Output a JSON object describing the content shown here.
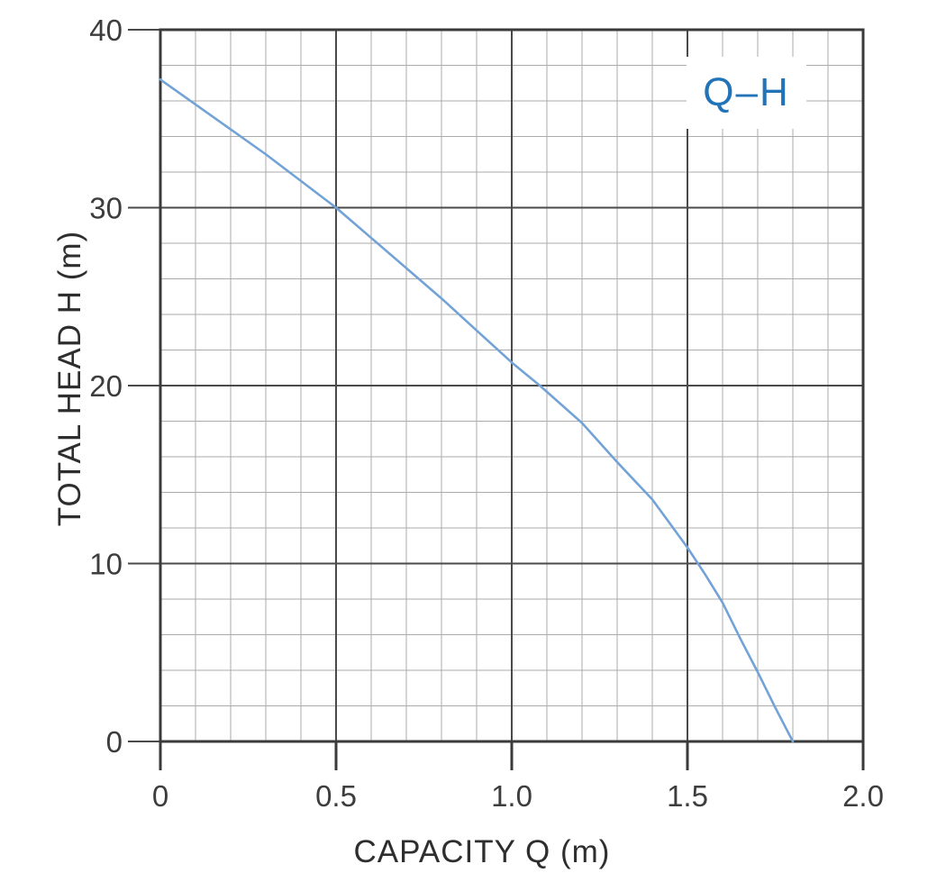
{
  "chart_data": {
    "type": "line",
    "title": "",
    "xlabel": "CAPACITY Q (m)",
    "ylabel": "TOTAL HEAD H (m)",
    "legend_label": "Q–H",
    "legend_position": "top-right",
    "grid": "on",
    "xlim": [
      0,
      2.0
    ],
    "ylim": [
      0,
      40
    ],
    "x_minor_step": 0.1,
    "x_major_step": 0.5,
    "y_minor_step": 2,
    "y_major_step": 10,
    "x_ticks": [
      "0",
      "0.5",
      "1.0",
      "1.5",
      "2.0"
    ],
    "y_ticks": [
      "40",
      "30",
      "20",
      "10",
      "0"
    ],
    "series": [
      {
        "name": "Q-H",
        "x": [
          0,
          0.1,
          0.2,
          0.3,
          0.4,
          0.5,
          0.6,
          0.7,
          0.8,
          0.9,
          1.0,
          1.08,
          1.2,
          1.3,
          1.4,
          1.5,
          1.55,
          1.6,
          1.65,
          1.7,
          1.75,
          1.8
        ],
        "y": [
          37.2,
          35.8,
          34.4,
          33.0,
          31.5,
          30.0,
          28.3,
          26.6,
          24.9,
          23.1,
          21.3,
          20.0,
          17.9,
          15.7,
          13.6,
          10.9,
          9.4,
          7.8,
          5.8,
          3.9,
          1.9,
          0
        ]
      }
    ],
    "colors": {
      "curve": "#73a3d6",
      "legend_text": "#2273b8",
      "grid_minor": "#ababab",
      "grid_major": "#4a4a4a",
      "frame": "#3a3a3a",
      "tick_text": "#3d3d3d"
    }
  }
}
